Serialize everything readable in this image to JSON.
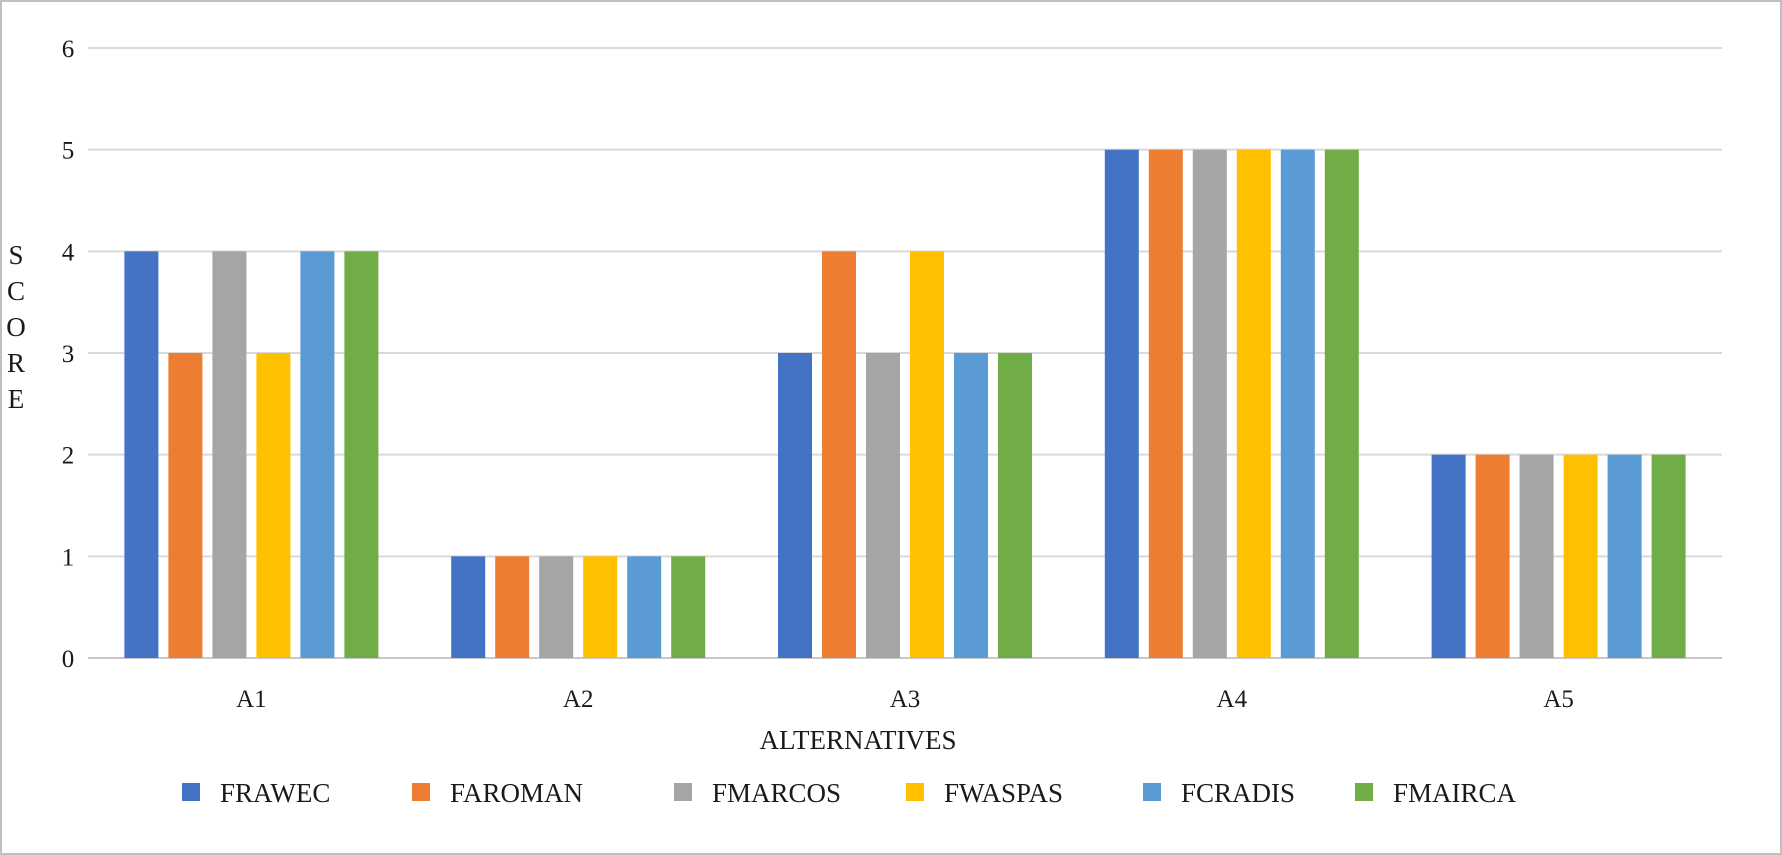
{
  "chart_data": {
    "type": "bar",
    "categories": [
      "A1",
      "A2",
      "A3",
      "A4",
      "A5"
    ],
    "series": [
      {
        "name": "FRAWEC",
        "color": "#4472C4",
        "values": [
          4,
          1,
          3,
          5,
          2
        ]
      },
      {
        "name": "FAROMAN",
        "color": "#ED7D31",
        "values": [
          3,
          1,
          4,
          5,
          2
        ]
      },
      {
        "name": "FMARCOS",
        "color": "#A5A5A5",
        "values": [
          4,
          1,
          3,
          5,
          2
        ]
      },
      {
        "name": "FWASPAS",
        "color": "#FFC000",
        "values": [
          3,
          1,
          4,
          5,
          2
        ]
      },
      {
        "name": "FCRADIS",
        "color": "#5B9BD5",
        "values": [
          4,
          1,
          3,
          5,
          2
        ]
      },
      {
        "name": "FMAIRCA",
        "color": "#70AD47",
        "values": [
          4,
          1,
          3,
          5,
          2
        ]
      }
    ],
    "xlabel": "ALTERNATIVES",
    "ylabel": "SCORE",
    "ylim": [
      0,
      6
    ],
    "yticks": [
      "0",
      "1",
      "2",
      "3",
      "4",
      "5",
      "6"
    ],
    "grid": true,
    "legend_position": "bottom"
  }
}
